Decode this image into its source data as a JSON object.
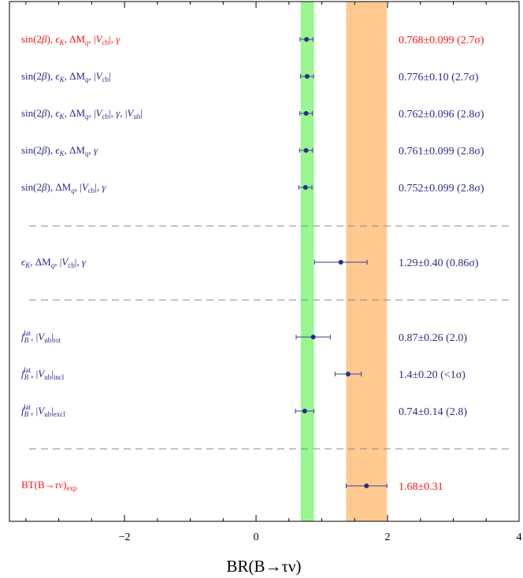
{
  "chart_data": {
    "type": "forest",
    "xlabel": "BR(B→τν)",
    "xlim": [
      -3.75,
      4.0
    ],
    "xticks": [
      -2,
      0,
      2,
      4
    ],
    "xtick_labels": [
      "−2",
      "0",
      "2",
      "4"
    ],
    "bands": [
      {
        "name": "green",
        "x_range": [
          0.68,
          0.88
        ],
        "color": "#99f58f"
      },
      {
        "name": "orange",
        "x_range": [
          1.37,
          1.99
        ],
        "color": "#ffc98f"
      }
    ],
    "entries": [
      {
        "label": "sin(2β), εK, ΔMq, |Vcb|, γ",
        "value": 0.768,
        "err": 0.099,
        "text": "0.768±0.099 (2.7σ)",
        "color": "#ff1010"
      },
      {
        "label": "sin(2β), εK, ΔMq, |Vcb|",
        "value": 0.776,
        "err": 0.1,
        "text": "0.776±0.10 (2.7σ)",
        "color": "#2b2b8e"
      },
      {
        "label": "sin(2β), εK, ΔMq, |Vcb|, γ, |Vub|",
        "value": 0.762,
        "err": 0.096,
        "text": "0.762±0.096 (2.8σ)",
        "color": "#2b2b8e"
      },
      {
        "label": "sin(2β), εK, ΔMq, γ",
        "value": 0.761,
        "err": 0.099,
        "text": "0.761±0.099 (2.8σ)",
        "color": "#2b2b8e"
      },
      {
        "label": "sin(2β), ΔMq, |Vcb|, γ",
        "value": 0.752,
        "err": 0.099,
        "text": "0.752±0.099 (2.8σ)",
        "color": "#2b2b8e"
      },
      {
        "label": "εK, ΔMq, |Vcb|, γ",
        "value": 1.29,
        "err": 0.4,
        "text": "1.29±0.40 (0.86σ)",
        "color": "#2b2b8e"
      },
      {
        "label": "fB lat, |Vub| tot",
        "value": 0.87,
        "err": 0.26,
        "text": "0.87±0.26 (2.0)",
        "color": "#2b2b8e"
      },
      {
        "label": "fB lat, |Vub| incl",
        "value": 1.4,
        "err": 0.2,
        "text": "1.4±0.20 (<1σ)",
        "color": "#2b2b8e"
      },
      {
        "label": "fB lat, |Vub| excl",
        "value": 0.74,
        "err": 0.14,
        "text": "0.74±0.14 (2.8)",
        "color": "#2b2b8e"
      },
      {
        "label": "BT(B→τν)exp",
        "value": 1.68,
        "err": 0.31,
        "text": "1.68±0.31",
        "color": "#ff1010"
      }
    ],
    "separators_after_entry": [
      5,
      6,
      9
    ]
  }
}
